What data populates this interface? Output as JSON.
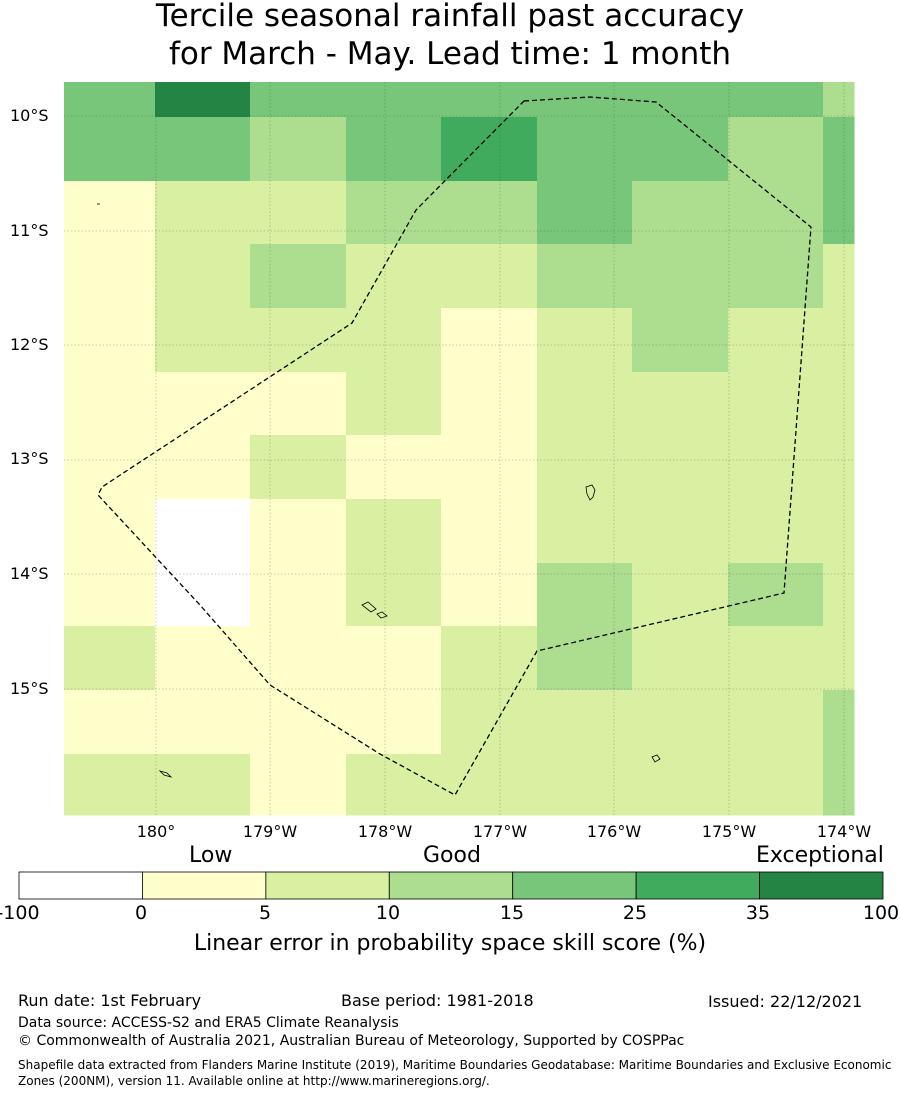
{
  "title": {
    "line1": "Tercile seasonal rainfall past accuracy",
    "line2": "for March - May. Lead time: 1 month"
  },
  "map": {
    "lat_labels": [
      "10°S",
      "11°S",
      "12°S",
      "13°S",
      "14°S",
      "15°S"
    ],
    "lon_labels": [
      "180°",
      "179°W",
      "178°W",
      "177°W",
      "176°W",
      "175°W",
      "174°W"
    ],
    "grid_levels": [
      [
        3,
        5,
        3,
        3,
        3,
        3,
        3,
        3,
        2
      ],
      [
        3,
        3,
        2,
        3,
        4,
        3,
        3,
        2,
        3
      ],
      [
        0,
        1,
        1,
        2,
        2,
        3,
        2,
        2,
        3
      ],
      [
        0,
        1,
        2,
        1,
        1,
        2,
        2,
        2,
        1
      ],
      [
        0,
        1,
        1,
        1,
        0,
        1,
        2,
        1,
        1
      ],
      [
        0,
        0,
        0,
        1,
        0,
        1,
        1,
        1,
        1
      ],
      [
        0,
        0,
        1,
        0,
        0,
        1,
        1,
        1,
        1
      ],
      [
        0,
        -1,
        0,
        1,
        0,
        1,
        1,
        1,
        1
      ],
      [
        0,
        -1,
        0,
        1,
        0,
        2,
        1,
        2,
        1
      ],
      [
        1,
        0,
        0,
        0,
        1,
        2,
        1,
        1,
        1
      ],
      [
        0,
        0,
        0,
        0,
        1,
        1,
        1,
        1,
        2
      ],
      [
        1,
        1,
        0,
        1,
        1,
        1,
        1,
        1,
        2
      ]
    ],
    "boundary_style": "dashed"
  },
  "legend": {
    "quality_low": "Low",
    "quality_good": "Good",
    "quality_exceptional": "Exceptional",
    "bins": [
      {
        "from": "-100",
        "to": "0",
        "color": "#ffffff"
      },
      {
        "from": "0",
        "to": "5",
        "color": "#ffffcc"
      },
      {
        "from": "5",
        "to": "10",
        "color": "#d9f0a3"
      },
      {
        "from": "10",
        "to": "15",
        "color": "#addd8e"
      },
      {
        "from": "15",
        "to": "25",
        "color": "#78c679"
      },
      {
        "from": "25",
        "to": "35",
        "color": "#41ab5d"
      },
      {
        "from": "35",
        "to": "100",
        "color": "#238443"
      }
    ],
    "ticks": [
      "-100",
      "0",
      "5",
      "10",
      "15",
      "25",
      "35",
      "100"
    ],
    "title": "Linear error in probability space skill score (%)"
  },
  "footer": {
    "run_date": "Run date: 1st February",
    "base_period": "Base period: 1981-2018",
    "issued": "Issued: 22/12/2021",
    "data_source": "Data source: ACCESS-S2 and ERA5 Climate Reanalysis",
    "copyright": "© Commonwealth of Australia 2021, Australian Bureau of Meteorology, Supported by COSPPac",
    "shapefile": "Shapefile data extracted from Flanders Marine Institute (2019), Maritime Boundaries Geodatabase: Maritime Boundaries and Exclusive Economic Zones (200NM), version 11. Available online at http://www.marineregions.org/."
  }
}
